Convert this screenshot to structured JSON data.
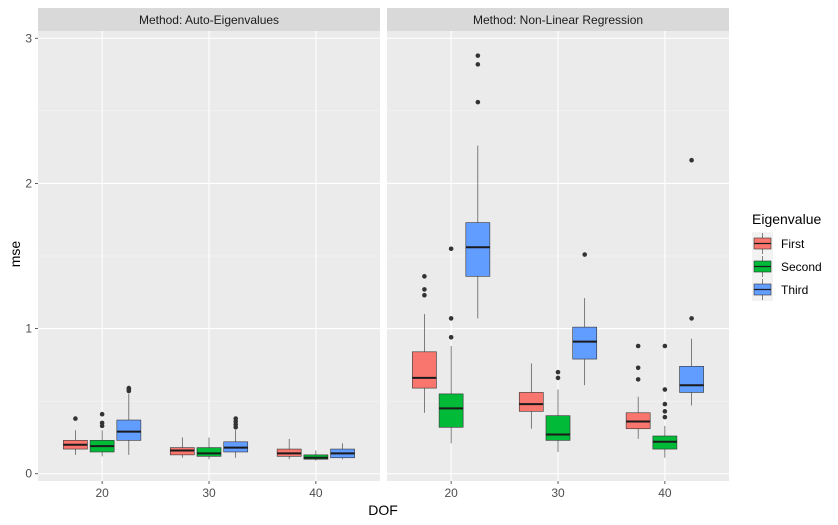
{
  "chart_data": {
    "type": "boxplot",
    "xlabel": "DOF",
    "ylabel": "mse",
    "ylim": [
      -0.05,
      3.05
    ],
    "y_ticks": [
      0,
      1,
      2,
      3
    ],
    "y_tick_labels": [
      "0",
      "1",
      "2",
      "3"
    ],
    "categories": [
      "20",
      "30",
      "40"
    ],
    "legend": {
      "title": "Eigenvalue",
      "position": "right",
      "entries": [
        {
          "name": "First",
          "color": "#F8766D"
        },
        {
          "name": "Second",
          "color": "#00BA38"
        },
        {
          "name": "Third",
          "color": "#619CFF"
        }
      ]
    },
    "panels": [
      {
        "title": "Method: Auto-Eigenvalues",
        "boxes": [
          {
            "dof": "20",
            "series": "First",
            "whisker_low": 0.13,
            "q1": 0.17,
            "median": 0.2,
            "q3": 0.23,
            "whisker_high": 0.3,
            "outliers": [
              0.38
            ]
          },
          {
            "dof": "20",
            "series": "Second",
            "whisker_low": 0.12,
            "q1": 0.15,
            "median": 0.19,
            "q3": 0.23,
            "whisker_high": 0.3,
            "outliers": [
              0.33,
              0.35,
              0.41
            ]
          },
          {
            "dof": "20",
            "series": "Third",
            "whisker_low": 0.13,
            "q1": 0.23,
            "median": 0.29,
            "q3": 0.37,
            "whisker_high": 0.55,
            "outliers": [
              0.57,
              0.58,
              0.59
            ]
          },
          {
            "dof": "30",
            "series": "First",
            "whisker_low": 0.11,
            "q1": 0.13,
            "median": 0.16,
            "q3": 0.18,
            "whisker_high": 0.25,
            "outliers": []
          },
          {
            "dof": "30",
            "series": "Second",
            "whisker_low": 0.1,
            "q1": 0.12,
            "median": 0.14,
            "q3": 0.18,
            "whisker_high": 0.25,
            "outliers": []
          },
          {
            "dof": "30",
            "series": "Third",
            "whisker_low": 0.11,
            "q1": 0.15,
            "median": 0.18,
            "q3": 0.22,
            "whisker_high": 0.3,
            "outliers": [
              0.32,
              0.34,
              0.36,
              0.38
            ]
          },
          {
            "dof": "40",
            "series": "First",
            "whisker_low": 0.1,
            "q1": 0.12,
            "median": 0.14,
            "q3": 0.17,
            "whisker_high": 0.24,
            "outliers": []
          },
          {
            "dof": "40",
            "series": "Second",
            "whisker_low": 0.09,
            "q1": 0.1,
            "median": 0.11,
            "q3": 0.13,
            "whisker_high": 0.16,
            "outliers": []
          },
          {
            "dof": "40",
            "series": "Third",
            "whisker_low": 0.1,
            "q1": 0.11,
            "median": 0.14,
            "q3": 0.17,
            "whisker_high": 0.21,
            "outliers": []
          }
        ]
      },
      {
        "title": "Method: Non-Linear Regression",
        "boxes": [
          {
            "dof": "20",
            "series": "First",
            "whisker_low": 0.42,
            "q1": 0.59,
            "median": 0.66,
            "q3": 0.84,
            "whisker_high": 1.1,
            "outliers": [
              1.23,
              1.27,
              1.36
            ]
          },
          {
            "dof": "20",
            "series": "Second",
            "whisker_low": 0.21,
            "q1": 0.32,
            "median": 0.45,
            "q3": 0.55,
            "whisker_high": 0.88,
            "outliers": [
              0.94,
              1.07,
              1.55
            ]
          },
          {
            "dof": "20",
            "series": "Third",
            "whisker_low": 1.07,
            "q1": 1.36,
            "median": 1.56,
            "q3": 1.73,
            "whisker_high": 2.26,
            "outliers": [
              2.56,
              2.82,
              2.88
            ]
          },
          {
            "dof": "30",
            "series": "First",
            "whisker_low": 0.31,
            "q1": 0.43,
            "median": 0.48,
            "q3": 0.56,
            "whisker_high": 0.76,
            "outliers": []
          },
          {
            "dof": "30",
            "series": "Second",
            "whisker_low": 0.15,
            "q1": 0.23,
            "median": 0.27,
            "q3": 0.4,
            "whisker_high": 0.58,
            "outliers": [
              0.66,
              0.7
            ]
          },
          {
            "dof": "30",
            "series": "Third",
            "whisker_low": 0.61,
            "q1": 0.79,
            "median": 0.91,
            "q3": 1.01,
            "whisker_high": 1.21,
            "outliers": [
              1.51
            ]
          },
          {
            "dof": "40",
            "series": "First",
            "whisker_low": 0.24,
            "q1": 0.31,
            "median": 0.36,
            "q3": 0.42,
            "whisker_high": 0.53,
            "outliers": [
              0.65,
              0.73,
              0.88
            ]
          },
          {
            "dof": "40",
            "series": "Second",
            "whisker_low": 0.11,
            "q1": 0.17,
            "median": 0.22,
            "q3": 0.26,
            "whisker_high": 0.33,
            "outliers": [
              0.39,
              0.43,
              0.48,
              0.58,
              0.88
            ]
          },
          {
            "dof": "40",
            "series": "Third",
            "whisker_low": 0.47,
            "q1": 0.56,
            "median": 0.61,
            "q3": 0.74,
            "whisker_high": 0.93,
            "outliers": [
              1.07,
              2.16
            ]
          }
        ]
      }
    ]
  }
}
